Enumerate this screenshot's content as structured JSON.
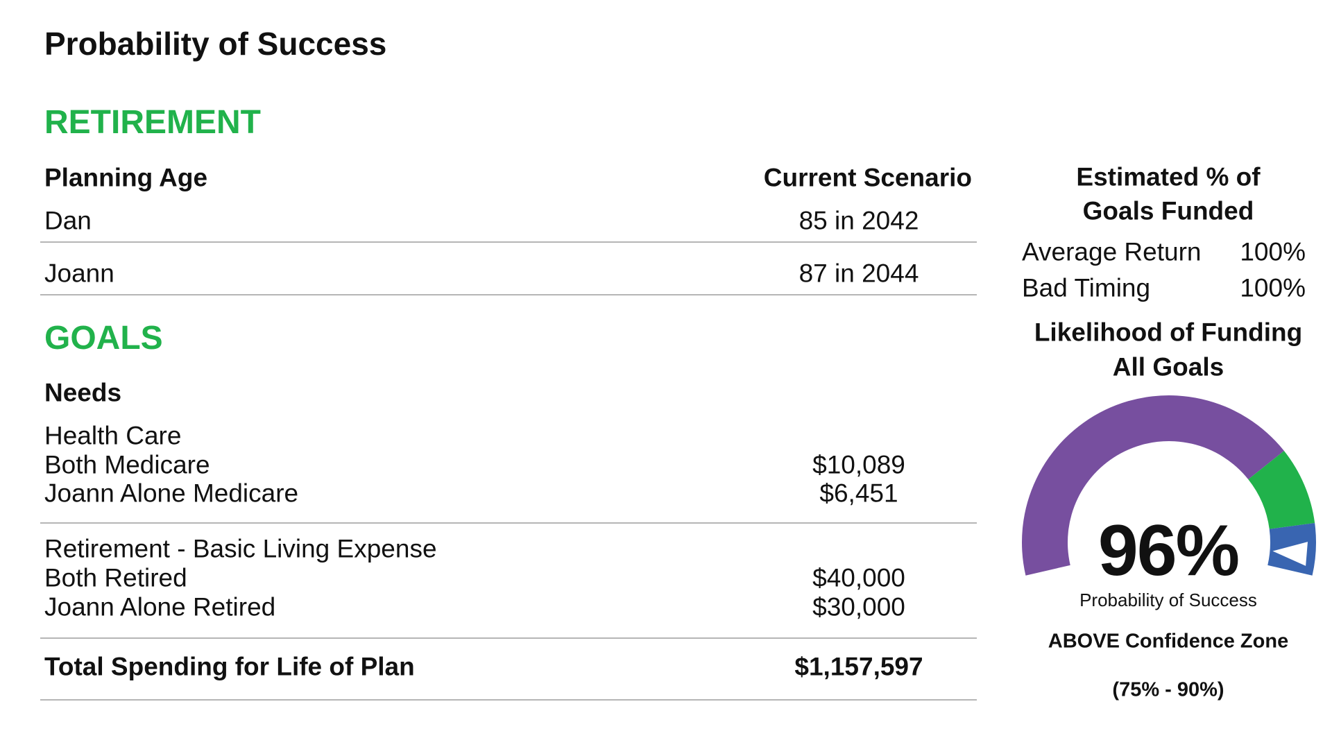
{
  "title": "Probability of Success",
  "retirement": {
    "heading": "RETIREMENT",
    "col_label": "Planning Age",
    "col_scenario": "Current Scenario",
    "rows": [
      {
        "name": "Dan",
        "value": "85 in 2042"
      },
      {
        "name": "Joann",
        "value": "87 in 2044"
      }
    ]
  },
  "goals": {
    "heading": "GOALS",
    "needs_label": "Needs",
    "groups": [
      {
        "title": "Health Care",
        "items": [
          {
            "name": "Both Medicare",
            "value": "$10,089"
          },
          {
            "name": "Joann Alone Medicare",
            "value": "$6,451"
          }
        ]
      },
      {
        "title": "Retirement - Basic Living Expense",
        "items": [
          {
            "name": "Both Retired",
            "value": "$40,000"
          },
          {
            "name": "Joann Alone Retired",
            "value": "$30,000"
          }
        ]
      }
    ],
    "total_label": "Total Spending for Life of Plan",
    "total_value": "$1,157,597"
  },
  "funded": {
    "heading_line1": "Estimated % of",
    "heading_line2": "Goals Funded",
    "rows": [
      {
        "name": "Average Return",
        "value": "100%"
      },
      {
        "name": "Bad Timing",
        "value": "100%"
      }
    ]
  },
  "likelihood": {
    "heading_line1": "Likelihood of Funding",
    "heading_line2": "All Goals",
    "percent": "96%",
    "percent_value": 96,
    "caption": "Probability of Success",
    "zone": "ABOVE Confidence Zone",
    "zone_range": "(75% - 90%)",
    "colors": {
      "below": "#774f9f",
      "confidence": "#21b24b",
      "above": "#3965b1"
    }
  }
}
